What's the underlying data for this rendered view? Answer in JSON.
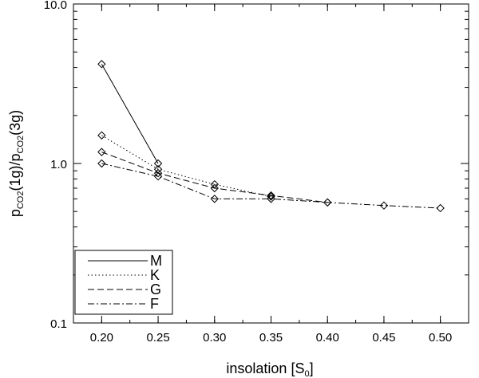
{
  "chart_data": {
    "type": "line",
    "xlabel": {
      "main": "insolation [S",
      "sub": "0",
      "close": "]"
    },
    "ylabel": {
      "p1": "p",
      "s1": "CO2",
      "m1": "(1g)/p",
      "s2": "CO2",
      "m2": "(3g)"
    },
    "xlim": [
      0.175,
      0.525
    ],
    "ylim": [
      0.1,
      10.0
    ],
    "yscale": "log",
    "x_ticks": [
      "0.20",
      "0.25",
      "0.30",
      "0.35",
      "0.40",
      "0.45",
      "0.50"
    ],
    "y_ticks": [
      "0.1",
      "1.0",
      "10.0"
    ],
    "legend_position": "bottom-left",
    "series": [
      {
        "name": "M",
        "dash": "solid",
        "x": [
          0.2,
          0.25
        ],
        "y": [
          4.2,
          1.0
        ]
      },
      {
        "name": "K",
        "dash": "dotted",
        "x": [
          0.2,
          0.25,
          0.3,
          0.35
        ],
        "y": [
          1.5,
          0.92,
          0.74,
          0.62
        ]
      },
      {
        "name": "G",
        "dash": "dashed",
        "x": [
          0.2,
          0.25,
          0.3,
          0.35,
          0.4
        ],
        "y": [
          1.18,
          0.87,
          0.7,
          0.63,
          0.57
        ]
      },
      {
        "name": "F",
        "dash": "dashdot",
        "x": [
          0.2,
          0.25,
          0.3,
          0.35,
          0.4,
          0.45,
          0.5
        ],
        "y": [
          1.0,
          0.83,
          0.6,
          0.6,
          0.57,
          0.545,
          0.525
        ]
      }
    ]
  }
}
